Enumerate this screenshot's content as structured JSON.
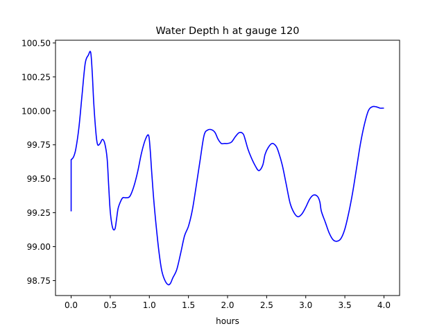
{
  "chart_data": {
    "type": "line",
    "title": "Water Depth h at gauge 120",
    "xlabel": "hours",
    "ylabel": "",
    "xlim": [
      -0.2,
      4.2
    ],
    "ylim": [
      98.64,
      100.52
    ],
    "x_ticks": [
      0.0,
      0.5,
      1.0,
      1.5,
      2.0,
      2.5,
      3.0,
      3.5,
      4.0
    ],
    "x_tick_labels": [
      "0.0",
      "0.5",
      "1.0",
      "1.5",
      "2.0",
      "2.5",
      "3.0",
      "3.5",
      "4.0"
    ],
    "y_ticks": [
      98.75,
      99.0,
      99.25,
      99.5,
      99.75,
      100.0,
      100.25,
      100.5
    ],
    "y_tick_labels": [
      "98.75",
      "99.00",
      "99.25",
      "99.50",
      "99.75",
      "100.00",
      "100.25",
      "100.50"
    ],
    "grid": false,
    "legend": "none",
    "series": [
      {
        "color": "#0000ff",
        "x": [
          0.0,
          0.0,
          0.03,
          0.06,
          0.1,
          0.14,
          0.18,
          0.22,
          0.25,
          0.27,
          0.29,
          0.32,
          0.34,
          0.37,
          0.4,
          0.43,
          0.46,
          0.48,
          0.5,
          0.53,
          0.56,
          0.58,
          0.6,
          0.63,
          0.66,
          0.7,
          0.75,
          0.8,
          0.85,
          0.9,
          0.95,
          0.99,
          1.01,
          1.03,
          1.06,
          1.1,
          1.13,
          1.16,
          1.2,
          1.24,
          1.27,
          1.3,
          1.35,
          1.4,
          1.45,
          1.5,
          1.55,
          1.6,
          1.65,
          1.7,
          1.75,
          1.8,
          1.84,
          1.88,
          1.92,
          1.96,
          2.0,
          2.05,
          2.1,
          2.15,
          2.2,
          2.23,
          2.26,
          2.3,
          2.35,
          2.4,
          2.45,
          2.48,
          2.52,
          2.57,
          2.62,
          2.65,
          2.7,
          2.75,
          2.8,
          2.85,
          2.9,
          2.95,
          3.0,
          3.05,
          3.1,
          3.15,
          3.18,
          3.2,
          3.25,
          3.3,
          3.35,
          3.4,
          3.45,
          3.5,
          3.55,
          3.6,
          3.65,
          3.7,
          3.75,
          3.8,
          3.85,
          3.9,
          3.95,
          3.98,
          4.0
        ],
        "y": [
          99.26,
          99.64,
          99.66,
          99.72,
          99.88,
          100.12,
          100.35,
          100.41,
          100.43,
          100.28,
          100.05,
          99.82,
          99.75,
          99.76,
          99.79,
          99.76,
          99.65,
          99.45,
          99.26,
          99.14,
          99.13,
          99.2,
          99.28,
          99.33,
          99.36,
          99.36,
          99.37,
          99.44,
          99.55,
          99.69,
          99.79,
          99.82,
          99.72,
          99.55,
          99.32,
          99.08,
          98.93,
          98.82,
          98.75,
          98.72,
          98.73,
          98.77,
          98.83,
          98.95,
          99.08,
          99.15,
          99.27,
          99.45,
          99.64,
          99.82,
          99.86,
          99.86,
          99.84,
          99.79,
          99.76,
          99.76,
          99.76,
          99.77,
          99.81,
          99.84,
          99.83,
          99.78,
          99.72,
          99.66,
          99.6,
          99.56,
          99.6,
          99.68,
          99.73,
          99.76,
          99.74,
          99.7,
          99.6,
          99.46,
          99.32,
          99.25,
          99.22,
          99.24,
          99.29,
          99.35,
          99.38,
          99.37,
          99.33,
          99.26,
          99.18,
          99.1,
          99.05,
          99.04,
          99.06,
          99.13,
          99.25,
          99.4,
          99.58,
          99.76,
          99.9,
          100.0,
          100.03,
          100.03,
          100.02,
          100.02,
          100.02
        ]
      }
    ]
  }
}
